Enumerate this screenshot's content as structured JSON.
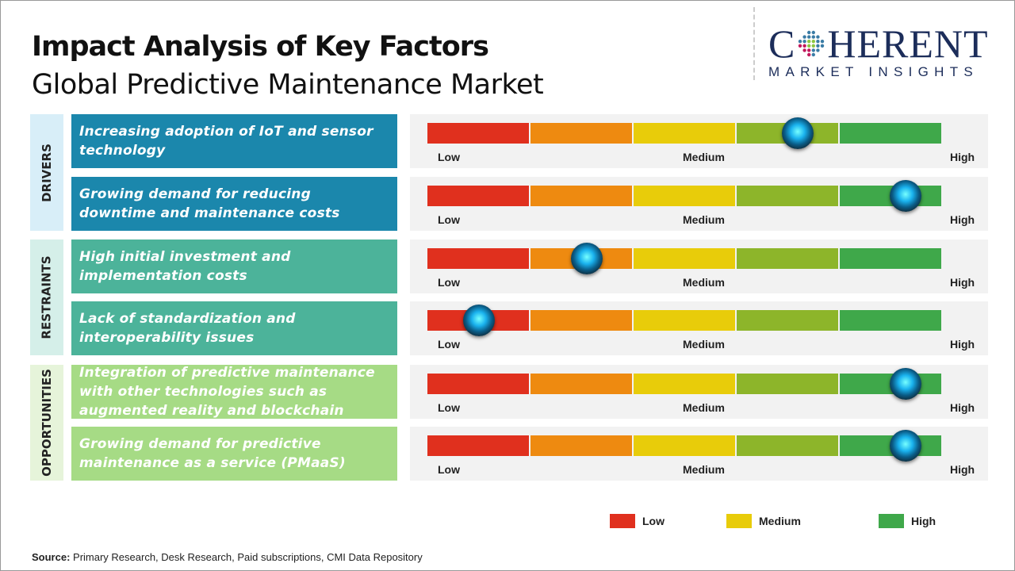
{
  "header": {
    "title": "Impact Analysis of Key Factors",
    "subtitle": "Global Predictive Maintenance Market"
  },
  "logo": {
    "text_main": "COHERENT",
    "text_sub": "MARKET INSIGHTS"
  },
  "chart_data": {
    "type": "gauge-bar",
    "scale_labels": [
      "Low",
      "Medium",
      "High"
    ],
    "segment_colors": [
      "#e0301e",
      "#ee8a10",
      "#e8cc0a",
      "#8db52a",
      "#3fa84a"
    ],
    "categories": [
      {
        "name": "DRIVERS",
        "label_bg": "#d8eef8",
        "box_color": "#1b87ac",
        "factors": [
          {
            "text": "Increasing adoption of IoT and sensor technology",
            "impact": 0.72
          },
          {
            "text": "Growing demand for reducing downtime and maintenance costs",
            "impact": 0.93
          }
        ]
      },
      {
        "name": "RESTRAINTS",
        "label_bg": "#d5efe9",
        "box_color": "#4cb39a",
        "factors": [
          {
            "text": "High initial investment and implementation costs",
            "impact": 0.31
          },
          {
            "text": "Lack of standardization and interoperability issues",
            "impact": 0.1
          }
        ]
      },
      {
        "name": "OPPORTUNITIES",
        "label_bg": "#e6f4da",
        "box_color": "#a6db85",
        "factors": [
          {
            "text": "Integration of predictive maintenance with other technologies such as augmented reality and blockchain",
            "impact": 0.93
          },
          {
            "text": "Growing demand for predictive maintenance as a service (PMaaS)",
            "impact": 0.93
          }
        ]
      }
    ],
    "legend": [
      {
        "label": "Low",
        "color": "#e0301e"
      },
      {
        "label": "Medium",
        "color": "#e8cc0a"
      },
      {
        "label": "High",
        "color": "#3fa84a"
      }
    ]
  },
  "source": {
    "label": "Source:",
    "text": " Primary Research, Desk Research, Paid subscriptions, CMI Data Repository"
  }
}
